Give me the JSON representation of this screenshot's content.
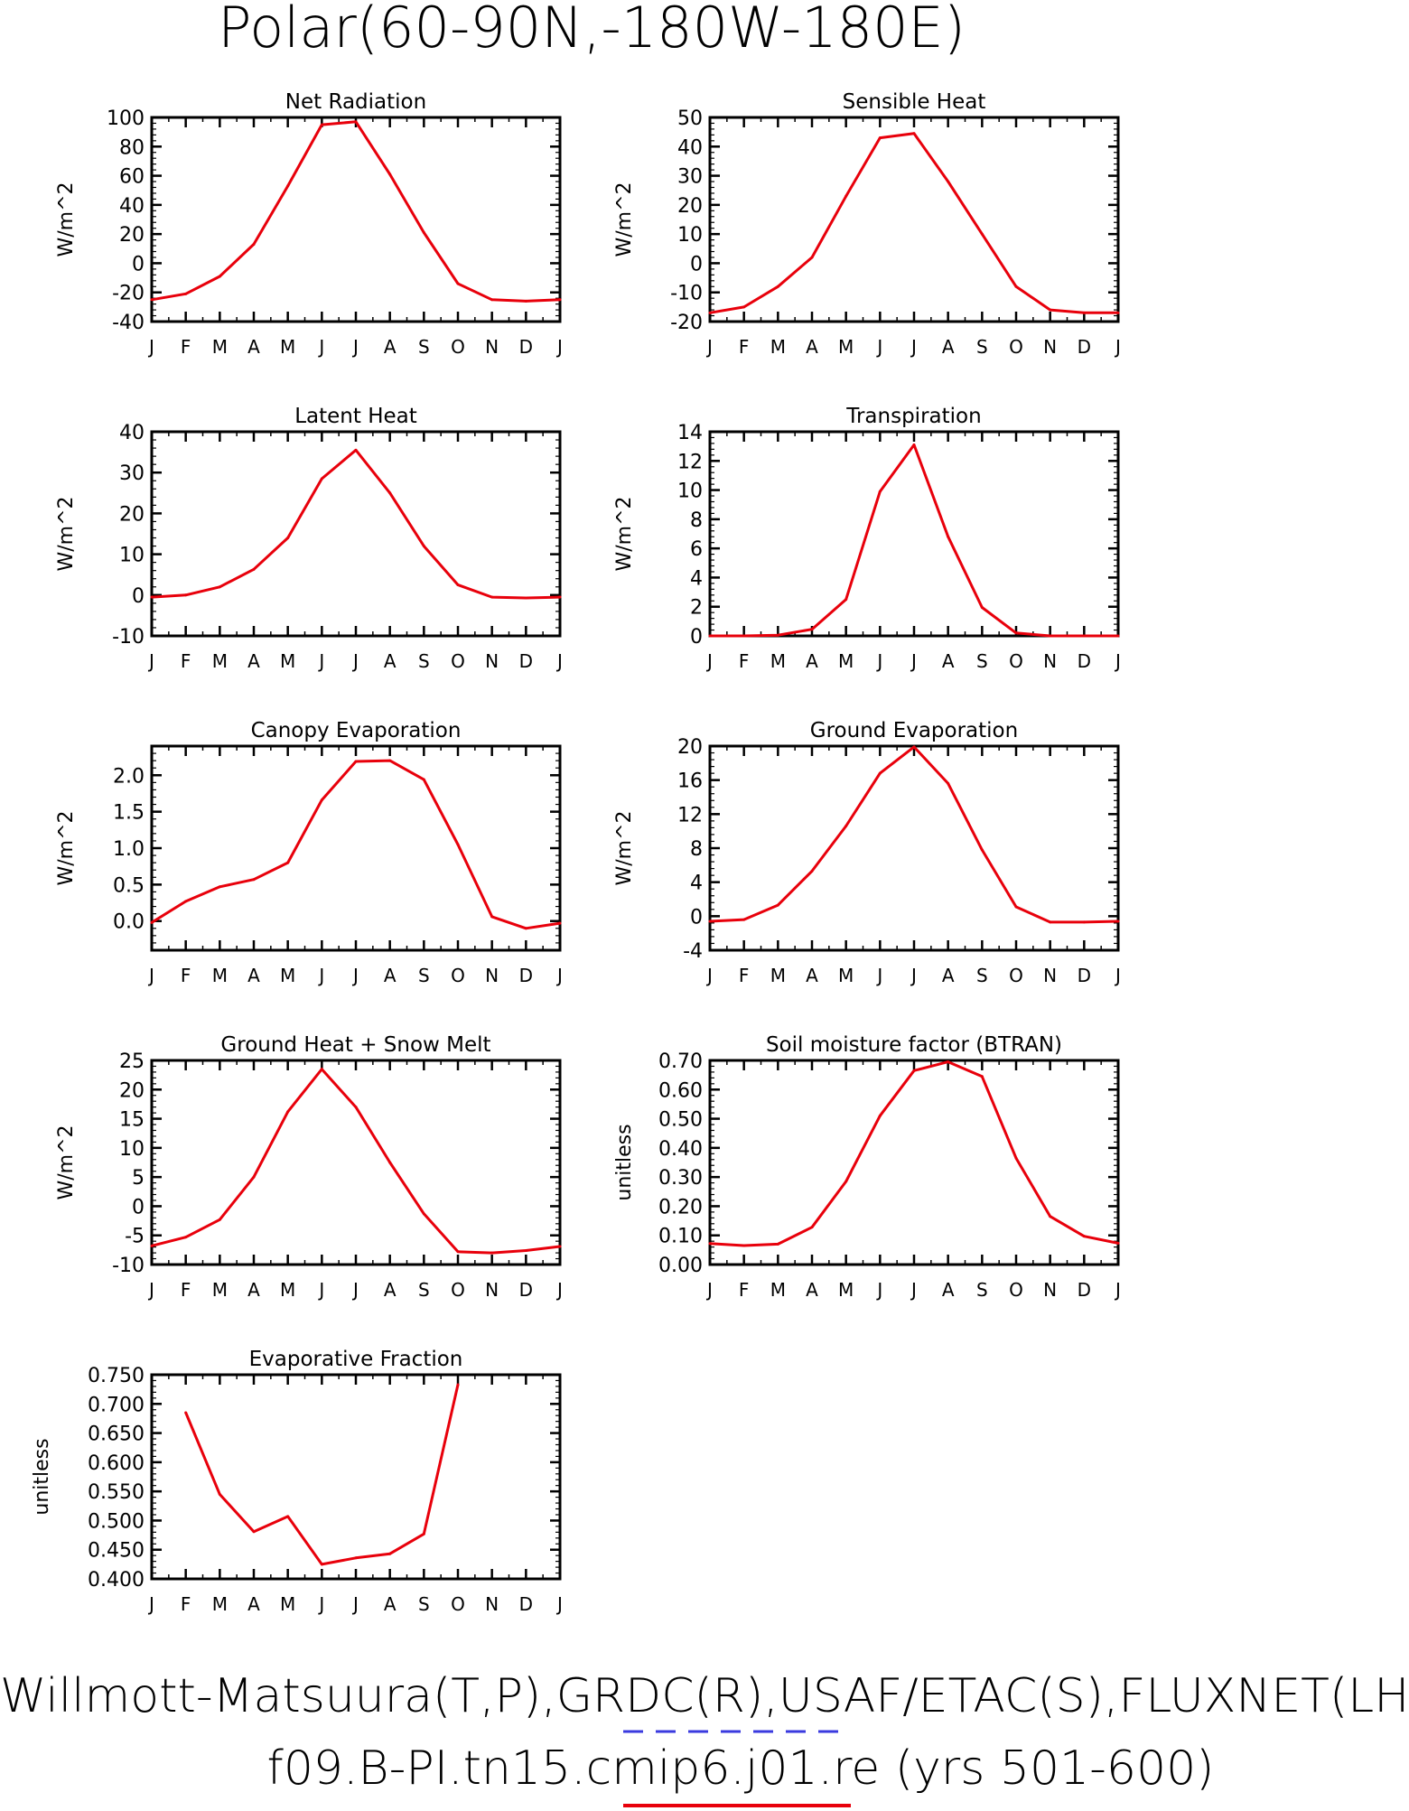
{
  "page_title": "Polar(60-90N,-180W-180E)",
  "footer": {
    "line1": "Willmott-Matsuura(T,P),GRDC(R),USAF/ETAC(S),FLUXNET(LHF,GPP)",
    "line2": "f09.B-PI.tn15.cmip6.j01.re (yrs 501-600)",
    "line1_legend_color": "#3a3adf",
    "line2_legend_color": "#e8000b"
  },
  "colors": {
    "series": "#e8000b",
    "axis": "#000000"
  },
  "months": [
    "J",
    "F",
    "M",
    "A",
    "M",
    "J",
    "J",
    "A",
    "S",
    "O",
    "N",
    "D",
    "J"
  ],
  "chart_data": [
    {
      "type": "line",
      "title": "Net Radiation",
      "ylabel": "W/m^2",
      "ylim": [
        -40,
        100
      ],
      "yticks": [
        {
          "v": -40,
          "l": "-40"
        },
        {
          "v": -20,
          "l": "-20"
        },
        {
          "v": 0,
          "l": "0"
        },
        {
          "v": 20,
          "l": "20"
        },
        {
          "v": 40,
          "l": "40"
        },
        {
          "v": 60,
          "l": "60"
        },
        {
          "v": 80,
          "l": "80"
        },
        {
          "v": 100,
          "l": "100"
        }
      ],
      "x": [
        "J",
        "F",
        "M",
        "A",
        "M",
        "J",
        "J",
        "A",
        "S",
        "O",
        "N",
        "D",
        "J"
      ],
      "values": [
        -25,
        -21,
        -9,
        13,
        53,
        95,
        97,
        61,
        21,
        -14,
        -25,
        -26,
        -25
      ]
    },
    {
      "type": "line",
      "title": "Sensible Heat",
      "ylabel": "W/m^2",
      "ylim": [
        -20,
        50
      ],
      "yticks": [
        {
          "v": -20,
          "l": "-20"
        },
        {
          "v": -10,
          "l": "-10"
        },
        {
          "v": 0,
          "l": "0"
        },
        {
          "v": 10,
          "l": "10"
        },
        {
          "v": 20,
          "l": "20"
        },
        {
          "v": 30,
          "l": "30"
        },
        {
          "v": 40,
          "l": "40"
        },
        {
          "v": 50,
          "l": "50"
        }
      ],
      "x": [
        "J",
        "F",
        "M",
        "A",
        "M",
        "J",
        "J",
        "A",
        "S",
        "O",
        "N",
        "D",
        "J"
      ],
      "values": [
        -17,
        -15,
        -8,
        2,
        23,
        43,
        44.5,
        28,
        10,
        -8,
        -16,
        -17,
        -17
      ]
    },
    {
      "type": "line",
      "title": "Latent Heat",
      "ylabel": "W/m^2",
      "ylim": [
        -10,
        40
      ],
      "yticks": [
        {
          "v": -10,
          "l": "-10"
        },
        {
          "v": 0,
          "l": "0"
        },
        {
          "v": 10,
          "l": "10"
        },
        {
          "v": 20,
          "l": "20"
        },
        {
          "v": 30,
          "l": "30"
        },
        {
          "v": 40,
          "l": "40"
        }
      ],
      "x": [
        "J",
        "F",
        "M",
        "A",
        "M",
        "J",
        "J",
        "A",
        "S",
        "O",
        "N",
        "D",
        "J"
      ],
      "values": [
        -0.5,
        0,
        2,
        6.3,
        14,
        28.5,
        35.5,
        25,
        12,
        2.5,
        -0.5,
        -0.7,
        -0.5
      ]
    },
    {
      "type": "line",
      "title": "Transpiration",
      "ylabel": "W/m^2",
      "ylim": [
        0,
        14
      ],
      "yticks": [
        {
          "v": 0,
          "l": "0"
        },
        {
          "v": 2,
          "l": "2"
        },
        {
          "v": 4,
          "l": "4"
        },
        {
          "v": 6,
          "l": "6"
        },
        {
          "v": 8,
          "l": "8"
        },
        {
          "v": 10,
          "l": "10"
        },
        {
          "v": 12,
          "l": "12"
        },
        {
          "v": 14,
          "l": "14"
        }
      ],
      "x": [
        "J",
        "F",
        "M",
        "A",
        "M",
        "J",
        "J",
        "A",
        "S",
        "O",
        "N",
        "D",
        "J"
      ],
      "values": [
        0,
        0,
        0.05,
        0.45,
        2.5,
        9.9,
        13.1,
        6.8,
        1.95,
        0.2,
        0,
        0,
        0
      ]
    },
    {
      "type": "line",
      "title": "Canopy Evaporation",
      "ylabel": "W/m^2",
      "ylim": [
        -0.4,
        2.4
      ],
      "yticks": [
        {
          "v": 0,
          "l": "0.0"
        },
        {
          "v": 0.5,
          "l": "0.5"
        },
        {
          "v": 1.0,
          "l": "1.0"
        },
        {
          "v": 1.5,
          "l": "1.5"
        },
        {
          "v": 2.0,
          "l": "2.0"
        }
      ],
      "x": [
        "J",
        "F",
        "M",
        "A",
        "M",
        "J",
        "J",
        "A",
        "S",
        "O",
        "N",
        "D",
        "J"
      ],
      "values": [
        -0.02,
        0.27,
        0.47,
        0.57,
        0.8,
        1.66,
        2.19,
        2.2,
        1.94,
        1.05,
        0.06,
        -0.1,
        -0.03
      ]
    },
    {
      "type": "line",
      "title": "Ground Evaporation",
      "ylabel": "W/m^2",
      "ylim": [
        -4,
        20
      ],
      "yticks": [
        {
          "v": -4,
          "l": "-4"
        },
        {
          "v": 0,
          "l": "0"
        },
        {
          "v": 4,
          "l": "4"
        },
        {
          "v": 8,
          "l": "8"
        },
        {
          "v": 12,
          "l": "12"
        },
        {
          "v": 16,
          "l": "16"
        },
        {
          "v": 20,
          "l": "20"
        }
      ],
      "x": [
        "J",
        "F",
        "M",
        "A",
        "M",
        "J",
        "J",
        "A",
        "S",
        "O",
        "N",
        "D",
        "J"
      ],
      "values": [
        -0.6,
        -0.4,
        1.3,
        5.3,
        10.6,
        16.8,
        19.9,
        15.6,
        7.8,
        1.1,
        -0.7,
        -0.7,
        -0.6
      ]
    },
    {
      "type": "line",
      "title": "Ground Heat + Snow Melt",
      "ylabel": "W/m^2",
      "ylim": [
        -10,
        25
      ],
      "yticks": [
        {
          "v": -10,
          "l": "-10"
        },
        {
          "v": -5,
          "l": "-5"
        },
        {
          "v": 0,
          "l": "0"
        },
        {
          "v": 5,
          "l": "5"
        },
        {
          "v": 10,
          "l": "10"
        },
        {
          "v": 15,
          "l": "15"
        },
        {
          "v": 20,
          "l": "20"
        },
        {
          "v": 25,
          "l": "25"
        }
      ],
      "x": [
        "J",
        "F",
        "M",
        "A",
        "M",
        "J",
        "J",
        "A",
        "S",
        "O",
        "N",
        "D",
        "J"
      ],
      "values": [
        -6.8,
        -5.3,
        -2.3,
        5,
        16.2,
        23.5,
        17,
        7.5,
        -1.3,
        -7.8,
        -8,
        -7.6,
        -6.9
      ]
    },
    {
      "type": "line",
      "title": "Soil moisture factor (BTRAN)",
      "ylabel": "unitless",
      "ylim": [
        0,
        0.7
      ],
      "yticks": [
        {
          "v": 0,
          "l": "0.00"
        },
        {
          "v": 0.1,
          "l": "0.10"
        },
        {
          "v": 0.2,
          "l": "0.20"
        },
        {
          "v": 0.3,
          "l": "0.30"
        },
        {
          "v": 0.4,
          "l": "0.40"
        },
        {
          "v": 0.5,
          "l": "0.50"
        },
        {
          "v": 0.6,
          "l": "0.60"
        },
        {
          "v": 0.7,
          "l": "0.70"
        }
      ],
      "x": [
        "J",
        "F",
        "M",
        "A",
        "M",
        "J",
        "J",
        "A",
        "S",
        "O",
        "N",
        "D",
        "J"
      ],
      "values": [
        0.072,
        0.065,
        0.07,
        0.128,
        0.285,
        0.51,
        0.665,
        0.695,
        0.645,
        0.365,
        0.165,
        0.097,
        0.073
      ]
    },
    {
      "type": "line",
      "title": "Evaporative Fraction",
      "ylabel": "unitless",
      "ylim": [
        0.4,
        0.75
      ],
      "yticks": [
        {
          "v": 0.4,
          "l": "0.400"
        },
        {
          "v": 0.45,
          "l": "0.450"
        },
        {
          "v": 0.5,
          "l": "0.500"
        },
        {
          "v": 0.55,
          "l": "0.550"
        },
        {
          "v": 0.6,
          "l": "0.600"
        },
        {
          "v": 0.65,
          "l": "0.650"
        },
        {
          "v": 0.7,
          "l": "0.700"
        },
        {
          "v": 0.75,
          "l": "0.750"
        }
      ],
      "x": [
        "J",
        "F",
        "M",
        "A",
        "M",
        "J",
        "J",
        "A",
        "S",
        "O",
        "N",
        "D",
        "J"
      ],
      "values": [
        null,
        0.685,
        0.545,
        0.481,
        0.507,
        0.425,
        0.436,
        0.443,
        0.477,
        0.733,
        null,
        null,
        null
      ]
    }
  ]
}
